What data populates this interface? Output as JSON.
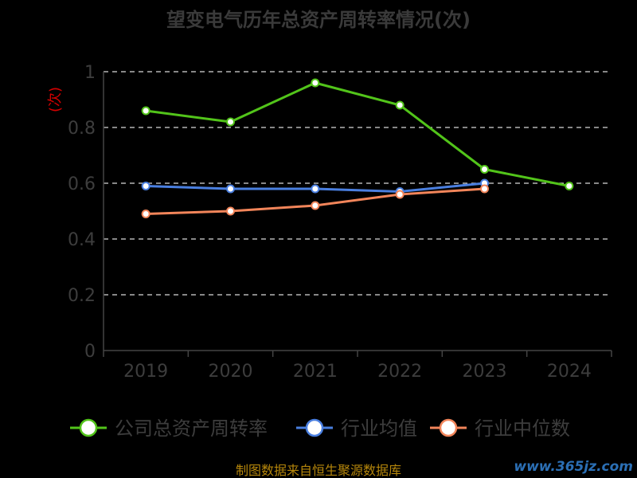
{
  "chart_data": {
    "type": "line",
    "title": "望变电气历年总资产周转率情况(次)",
    "ylabel": "(次)",
    "categories": [
      "2019",
      "2020",
      "2021",
      "2022",
      "2023",
      "2024"
    ],
    "ylim": [
      0,
      1
    ],
    "yticks": [
      "0",
      "0.2",
      "0.4",
      "0.6",
      "0.8",
      "1"
    ],
    "grid": true,
    "legend_position": "bottom",
    "series": [
      {
        "name": "公司总资产周转率",
        "color": "#52c41a",
        "values": [
          0.86,
          0.82,
          0.96,
          0.88,
          0.65,
          0.59
        ]
      },
      {
        "name": "行业均值",
        "color": "#4a7fe0",
        "values": [
          0.59,
          0.58,
          0.58,
          0.57,
          0.6,
          null
        ]
      },
      {
        "name": "行业中位数",
        "color": "#f2855a",
        "values": [
          0.49,
          0.5,
          0.52,
          0.56,
          0.58,
          null
        ]
      }
    ]
  },
  "footer": {
    "source": "制图数据来自恒生聚源数据库",
    "watermark": "www.365jz.com"
  }
}
